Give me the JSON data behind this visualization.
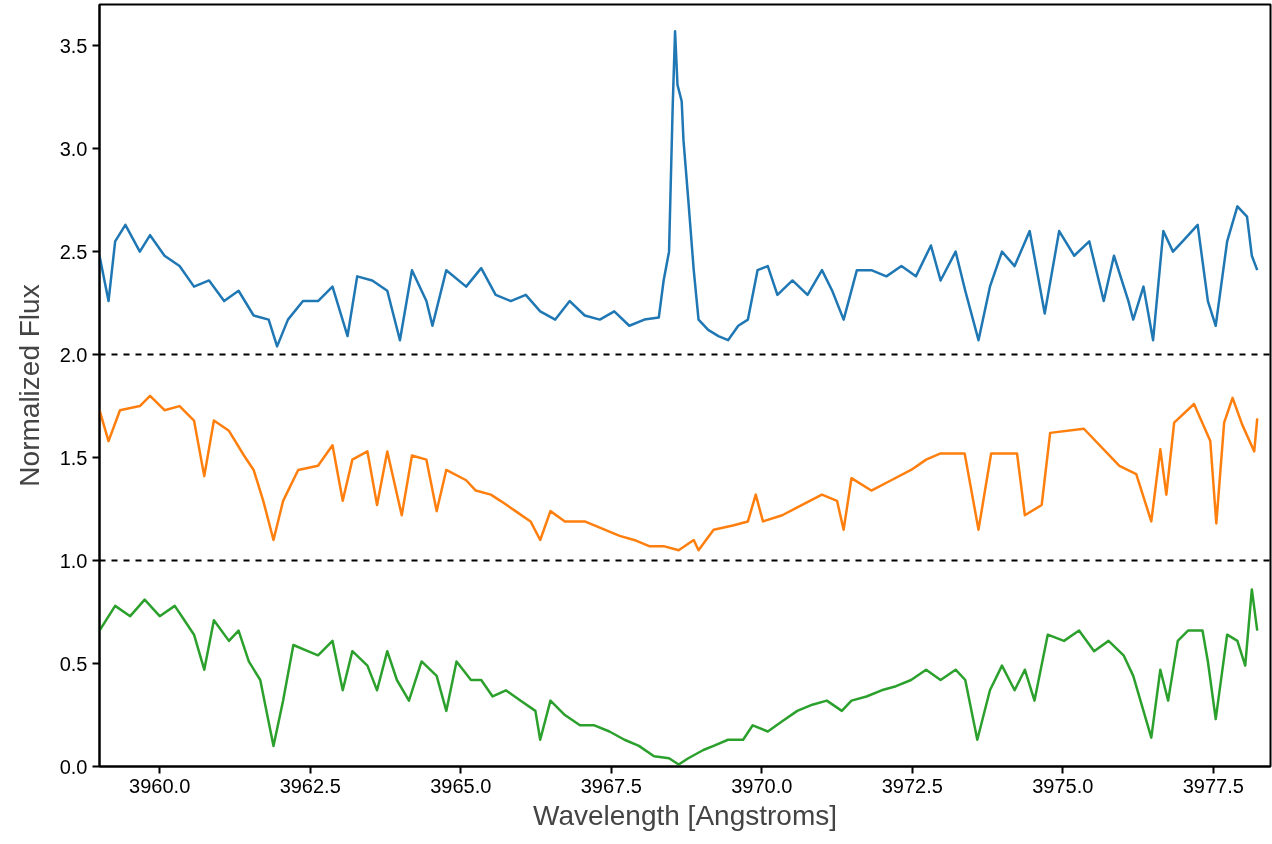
{
  "chart_data": {
    "type": "line",
    "xlabel": "Wavelength [Angstroms]",
    "ylabel": "Normalized Flux",
    "xlim": [
      3959.0,
      3978.45
    ],
    "ylim": [
      0,
      3.7
    ],
    "xticks": [
      {
        "value": 3960.0,
        "label": "3960.0"
      },
      {
        "value": 3962.5,
        "label": "3962.5"
      },
      {
        "value": 3965.0,
        "label": "3965.0"
      },
      {
        "value": 3967.5,
        "label": "3967.5"
      },
      {
        "value": 3970.0,
        "label": "3970.0"
      },
      {
        "value": 3972.5,
        "label": "3972.5"
      },
      {
        "value": 3975.0,
        "label": "3975.0"
      },
      {
        "value": 3977.5,
        "label": "3977.5"
      }
    ],
    "yticks": [
      {
        "value": 0,
        "label": "0.0"
      },
      {
        "value": 0.5,
        "label": "0.5"
      },
      {
        "value": 1,
        "label": "1.0"
      },
      {
        "value": 1.5,
        "label": "1.5"
      },
      {
        "value": 2,
        "label": "2.0"
      },
      {
        "value": 2.5,
        "label": "2.5"
      },
      {
        "value": 3,
        "label": "3.0"
      },
      {
        "value": 3.5,
        "label": "3.5"
      }
    ],
    "grid": false,
    "marker": "none",
    "line_style": "solid",
    "ref_lines": [
      {
        "axis": "y",
        "value": 1,
        "color": "#000000",
        "line_style": "dashed"
      },
      {
        "axis": "y",
        "value": 2,
        "color": "#000000",
        "line_style": "dashed"
      }
    ],
    "series": [
      {
        "color": "#1f77b4",
        "x": [
          3959.0,
          3959.15,
          3959.26,
          3959.43,
          3959.67,
          3959.84,
          3960.08,
          3960.33,
          3960.57,
          3960.82,
          3961.07,
          3961.31,
          3961.56,
          3961.81,
          3961.95,
          3962.13,
          3962.38,
          3962.63,
          3962.87,
          3963.12,
          3963.28,
          3963.53,
          3963.78,
          3963.99,
          3964.19,
          3964.43,
          3964.53,
          3964.76,
          3965.09,
          3965.34,
          3965.58,
          3965.83,
          3966.08,
          3966.32,
          3966.57,
          3966.81,
          3967.06,
          3967.31,
          3967.55,
          3967.8,
          3968.05,
          3968.29,
          3968.37,
          3968.46,
          3968.52,
          3968.56,
          3968.6,
          3968.67,
          3968.7,
          3968.78,
          3968.87,
          3968.95,
          3969.11,
          3969.28,
          3969.44,
          3969.61,
          3969.77,
          3969.93,
          3970.1,
          3970.26,
          3970.51,
          3970.76,
          3971.0,
          3971.17,
          3971.36,
          3971.58,
          3971.82,
          3972.07,
          3972.32,
          3972.56,
          3972.81,
          3972.97,
          3973.22,
          3973.38,
          3973.6,
          3973.79,
          3973.99,
          3974.2,
          3974.45,
          3974.7,
          3974.94,
          3975.19,
          3975.44,
          3975.68,
          3975.85,
          3976.09,
          3976.17,
          3976.34,
          3976.5,
          3976.67,
          3976.83,
          3976.99,
          3977.24,
          3977.41,
          3977.54,
          3977.73,
          3977.9,
          3978.06,
          3978.14,
          3978.23
        ],
        "values": [
          2.48,
          2.26,
          2.55,
          2.63,
          2.5,
          2.58,
          2.48,
          2.43,
          2.33,
          2.36,
          2.26,
          2.31,
          2.19,
          2.17,
          2.04,
          2.17,
          2.26,
          2.26,
          2.33,
          2.09,
          2.38,
          2.36,
          2.31,
          2.07,
          2.41,
          2.26,
          2.14,
          2.41,
          2.33,
          2.42,
          2.29,
          2.26,
          2.29,
          2.21,
          2.17,
          2.26,
          2.19,
          2.17,
          2.21,
          2.14,
          2.17,
          2.18,
          2.36,
          2.5,
          3.2,
          3.57,
          3.31,
          3.23,
          3.04,
          2.75,
          2.41,
          2.17,
          2.12,
          2.09,
          2.07,
          2.14,
          2.17,
          2.41,
          2.43,
          2.29,
          2.36,
          2.29,
          2.41,
          2.31,
          2.17,
          2.41,
          2.41,
          2.38,
          2.43,
          2.38,
          2.53,
          2.36,
          2.5,
          2.31,
          2.07,
          2.33,
          2.5,
          2.43,
          2.6,
          2.2,
          2.6,
          2.48,
          2.55,
          2.26,
          2.48,
          2.26,
          2.17,
          2.33,
          2.07,
          2.6,
          2.5,
          2.55,
          2.63,
          2.26,
          2.14,
          2.55,
          2.72,
          2.67,
          2.48,
          2.41
        ]
      },
      {
        "color": "#ff7f0e",
        "x": [
          3959.0,
          3959.15,
          3959.34,
          3959.67,
          3959.84,
          3960.08,
          3960.33,
          3960.57,
          3960.74,
          3960.9,
          3961.15,
          3961.4,
          3961.56,
          3961.72,
          3961.89,
          3962.05,
          3962.3,
          3962.63,
          3962.87,
          3963.04,
          3963.2,
          3963.45,
          3963.61,
          3963.78,
          3964.02,
          3964.19,
          3964.43,
          3964.6,
          3964.76,
          3965.09,
          3965.25,
          3965.5,
          3965.66,
          3965.91,
          3966.16,
          3966.32,
          3966.49,
          3966.73,
          3967.06,
          3967.39,
          3967.64,
          3967.88,
          3968.13,
          3968.37,
          3968.62,
          3968.87,
          3968.95,
          3969.2,
          3969.52,
          3969.77,
          3969.9,
          3970.02,
          3970.34,
          3970.67,
          3971.0,
          3971.25,
          3971.36,
          3971.49,
          3971.82,
          3972.15,
          3972.48,
          3972.73,
          3972.97,
          3973.37,
          3973.6,
          3973.81,
          3974.24,
          3974.37,
          3974.65,
          3974.79,
          3975.35,
          3975.94,
          3976.22,
          3976.47,
          3976.62,
          3976.72,
          3976.85,
          3977.18,
          3977.45,
          3977.55,
          3977.68,
          3977.82,
          3977.98,
          3978.18,
          3978.23
        ],
        "values": [
          1.73,
          1.58,
          1.73,
          1.75,
          1.8,
          1.73,
          1.75,
          1.68,
          1.41,
          1.68,
          1.63,
          1.51,
          1.44,
          1.29,
          1.1,
          1.29,
          1.44,
          1.46,
          1.56,
          1.29,
          1.49,
          1.53,
          1.27,
          1.53,
          1.22,
          1.51,
          1.49,
          1.24,
          1.44,
          1.39,
          1.34,
          1.32,
          1.29,
          1.24,
          1.19,
          1.1,
          1.24,
          1.19,
          1.19,
          1.15,
          1.12,
          1.1,
          1.07,
          1.07,
          1.05,
          1.1,
          1.05,
          1.15,
          1.17,
          1.19,
          1.32,
          1.19,
          1.22,
          1.27,
          1.32,
          1.29,
          1.15,
          1.4,
          1.34,
          1.39,
          1.44,
          1.49,
          1.52,
          1.52,
          1.15,
          1.52,
          1.52,
          1.22,
          1.27,
          1.62,
          1.64,
          1.46,
          1.42,
          1.19,
          1.54,
          1.32,
          1.67,
          1.76,
          1.58,
          1.18,
          1.67,
          1.79,
          1.66,
          1.53,
          1.69
        ]
      },
      {
        "color": "#2ca02c",
        "x": [
          3959.0,
          3959.26,
          3959.51,
          3959.75,
          3960.0,
          3960.25,
          3960.41,
          3960.57,
          3960.74,
          3960.9,
          3961.15,
          3961.31,
          3961.48,
          3961.67,
          3961.89,
          3962.05,
          3962.22,
          3962.46,
          3962.63,
          3962.87,
          3963.04,
          3963.2,
          3963.45,
          3963.61,
          3963.78,
          3963.94,
          3964.14,
          3964.35,
          3964.6,
          3964.76,
          3964.93,
          3965.17,
          3965.34,
          3965.53,
          3965.75,
          3965.99,
          3966.24,
          3966.32,
          3966.49,
          3966.73,
          3966.98,
          3967.22,
          3967.47,
          3967.72,
          3967.96,
          3968.21,
          3968.46,
          3968.62,
          3968.78,
          3969.03,
          3969.2,
          3969.44,
          3969.69,
          3969.85,
          3970.1,
          3970.34,
          3970.59,
          3970.84,
          3971.08,
          3971.33,
          3971.49,
          3971.74,
          3971.99,
          3972.23,
          3972.48,
          3972.73,
          3972.97,
          3973.22,
          3973.38,
          3973.58,
          3973.79,
          3973.99,
          3974.2,
          3974.37,
          3974.53,
          3974.75,
          3975.02,
          3975.27,
          3975.52,
          3975.76,
          3976.01,
          3976.17,
          3976.47,
          3976.62,
          3976.75,
          3976.91,
          3977.08,
          3977.32,
          3977.41,
          3977.54,
          3977.73,
          3977.9,
          3978.03,
          3978.14,
          3978.23
        ],
        "values": [
          0.66,
          0.78,
          0.73,
          0.81,
          0.73,
          0.78,
          0.71,
          0.64,
          0.47,
          0.71,
          0.61,
          0.66,
          0.51,
          0.42,
          0.1,
          0.32,
          0.59,
          0.56,
          0.54,
          0.61,
          0.37,
          0.56,
          0.49,
          0.37,
          0.56,
          0.42,
          0.32,
          0.51,
          0.44,
          0.27,
          0.51,
          0.42,
          0.42,
          0.34,
          0.37,
          0.32,
          0.27,
          0.13,
          0.32,
          0.25,
          0.2,
          0.2,
          0.17,
          0.13,
          0.1,
          0.05,
          0.04,
          0.01,
          0.04,
          0.08,
          0.1,
          0.13,
          0.13,
          0.2,
          0.17,
          0.22,
          0.27,
          0.3,
          0.32,
          0.27,
          0.32,
          0.34,
          0.37,
          0.39,
          0.42,
          0.47,
          0.42,
          0.47,
          0.42,
          0.13,
          0.37,
          0.49,
          0.37,
          0.47,
          0.32,
          0.64,
          0.61,
          0.66,
          0.56,
          0.61,
          0.54,
          0.44,
          0.14,
          0.47,
          0.32,
          0.61,
          0.66,
          0.66,
          0.51,
          0.23,
          0.64,
          0.61,
          0.49,
          0.86,
          0.66
        ]
      }
    ]
  }
}
